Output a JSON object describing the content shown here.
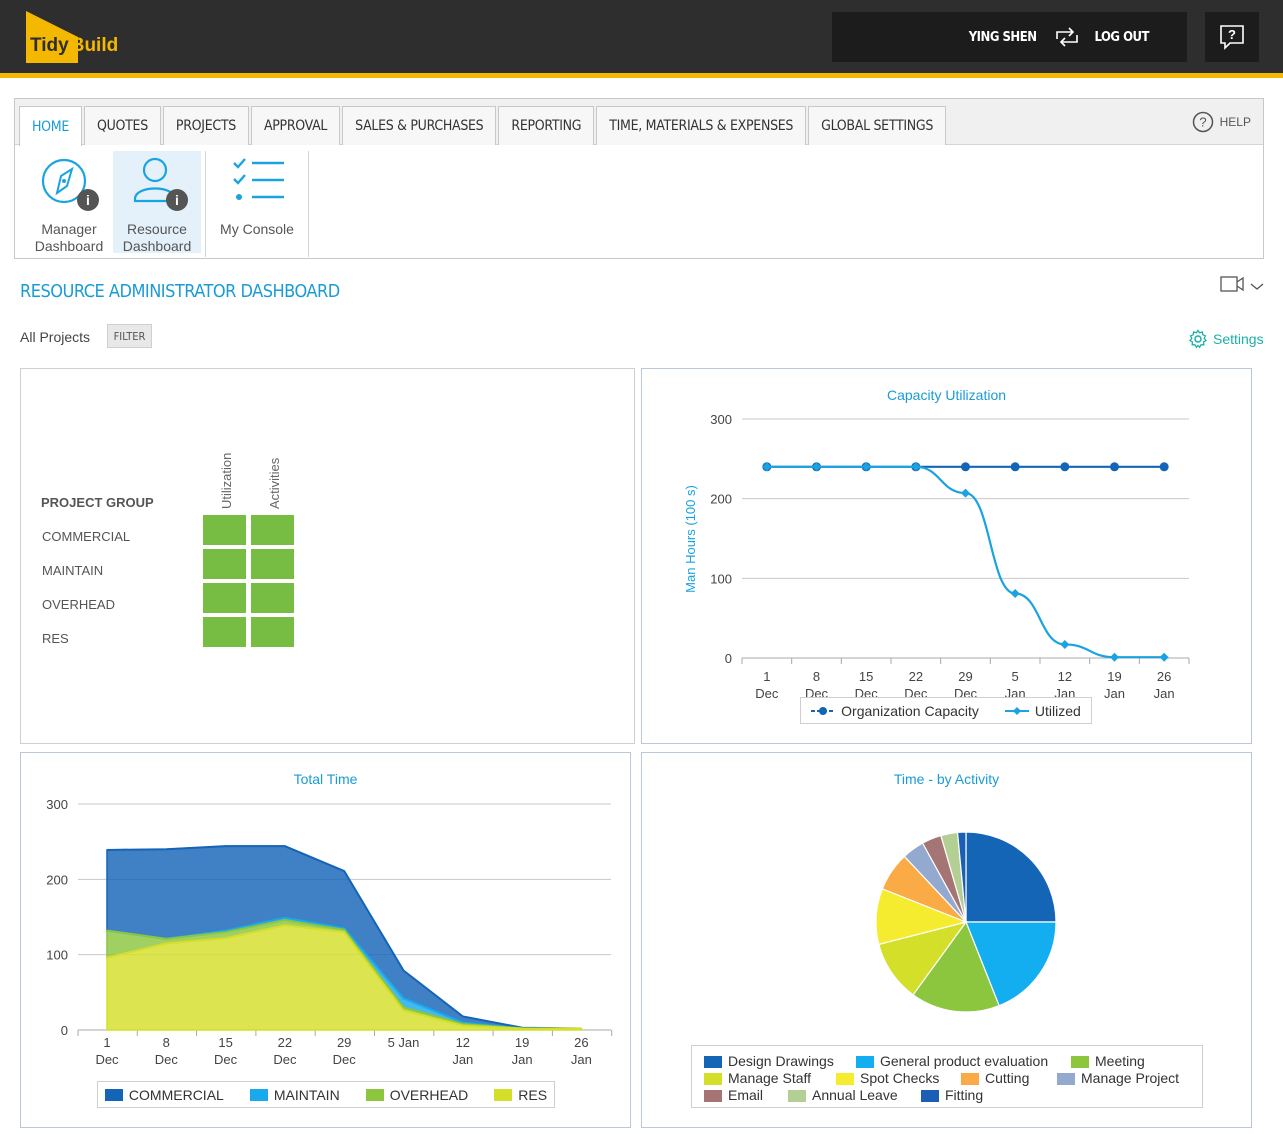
{
  "brand": {
    "tidy": "Tidy",
    "build": "Build"
  },
  "user": {
    "name": "YING SHEN",
    "logout": "LOG OUT"
  },
  "nav": {
    "tabs": [
      "HOME",
      "QUOTES",
      "PROJECTS",
      "APPROVAL",
      "SALES & PURCHASES",
      "REPORTING",
      "TIME, MATERIALS & EXPENSES",
      "GLOBAL SETTINGS"
    ],
    "active_tab": "HOME",
    "help": "HELP"
  },
  "ribbon": {
    "manager_line1": "Manager",
    "manager_line2": "Dashboard",
    "resource_line1": "Resource",
    "resource_line2": "Dashboard",
    "console": "My Console"
  },
  "page": {
    "title": "RESOURCE ADMINISTRATOR DASHBOARD",
    "scope": "All Projects",
    "filter": "FILTER",
    "settings": "Settings"
  },
  "heatmap": {
    "row_header": "PROJECT GROUP",
    "columns": [
      "Utilization",
      "Activities"
    ],
    "rows": [
      "COMMERCIAL",
      "MAINTAIN",
      "OVERHEAD",
      "RES"
    ],
    "cell_color": "#77bd43"
  },
  "chart_data": [
    {
      "type": "line",
      "title": "Capacity Utilization",
      "ylabel": "Man Hours (100 s)",
      "xlabel": "",
      "ylim": [
        0,
        300
      ],
      "yticks": [
        0,
        100,
        200,
        300
      ],
      "categories": [
        [
          "1",
          "Dec"
        ],
        [
          "8",
          "Dec"
        ],
        [
          "15",
          "Dec"
        ],
        [
          "22",
          "Dec"
        ],
        [
          "29",
          "Dec"
        ],
        [
          "5",
          "Jan"
        ],
        [
          "12",
          "Jan"
        ],
        [
          "19",
          "Jan"
        ],
        [
          "26",
          "Jan"
        ]
      ],
      "series": [
        {
          "name": "Organization Capacity",
          "color": "#1565b7",
          "values": [
            240,
            240,
            240,
            240,
            240,
            240,
            240,
            240,
            240
          ]
        },
        {
          "name": "Utilized",
          "color": "#1aa3e0",
          "values": [
            240,
            240,
            240,
            240,
            207,
            81,
            17,
            1,
            1
          ]
        }
      ],
      "legend": "bottom",
      "grid": true
    },
    {
      "type": "area",
      "title": "Total Time",
      "ylim": [
        0,
        300
      ],
      "yticks": [
        0,
        100,
        200,
        300
      ],
      "categories": [
        [
          "1",
          "Dec"
        ],
        [
          "8",
          "Dec"
        ],
        [
          "15",
          "Dec"
        ],
        [
          "22",
          "Dec"
        ],
        [
          "29",
          "Dec"
        ],
        [
          "5 Jan",
          ""
        ],
        [
          "12",
          "Jan"
        ],
        [
          "19",
          "Jan"
        ],
        [
          "26",
          "Jan"
        ]
      ],
      "series": [
        {
          "name": "COMMERCIAL",
          "color": "#1565b7",
          "values": [
            107,
            119,
            112,
            95,
            76,
            37,
            8,
            1,
            0
          ]
        },
        {
          "name": "MAINTAIN",
          "color": "#1aa9ec",
          "values": [
            0,
            0,
            2,
            3,
            2,
            12,
            2,
            0,
            0
          ]
        },
        {
          "name": "OVERHEAD",
          "color": "#8cc63f",
          "values": [
            36,
            6,
            8,
            7,
            3,
            4,
            2,
            0,
            0
          ]
        },
        {
          "name": "RES",
          "color": "#d4df2a",
          "values": [
            96,
            115,
            122,
            139,
            130,
            26,
            6,
            2,
            2
          ]
        }
      ],
      "legend": "bottom",
      "grid": true
    },
    {
      "type": "pie",
      "title": "Time - by Activity",
      "slices": [
        {
          "name": "Design Drawings",
          "color": "#1565b7",
          "value": 25
        },
        {
          "name": "General product evaluation",
          "color": "#12aeef",
          "value": 19
        },
        {
          "name": "Meeting",
          "color": "#8cc63f",
          "value": 16
        },
        {
          "name": "Manage Staff",
          "color": "#d4df2a",
          "value": 11
        },
        {
          "name": "Spot Checks",
          "color": "#f5ec30",
          "value": 10
        },
        {
          "name": "Cutting",
          "color": "#fbab45",
          "value": 7
        },
        {
          "name": "Manage Project",
          "color": "#94a9cf",
          "value": 4
        },
        {
          "name": "Email",
          "color": "#a57474",
          "value": 3.5
        },
        {
          "name": "Annual Leave",
          "color": "#b4cf94",
          "value": 3
        },
        {
          "name": "Fitting",
          "color": "#1a5fb4",
          "value": 1.5
        }
      ],
      "legend": "bottom"
    }
  ]
}
